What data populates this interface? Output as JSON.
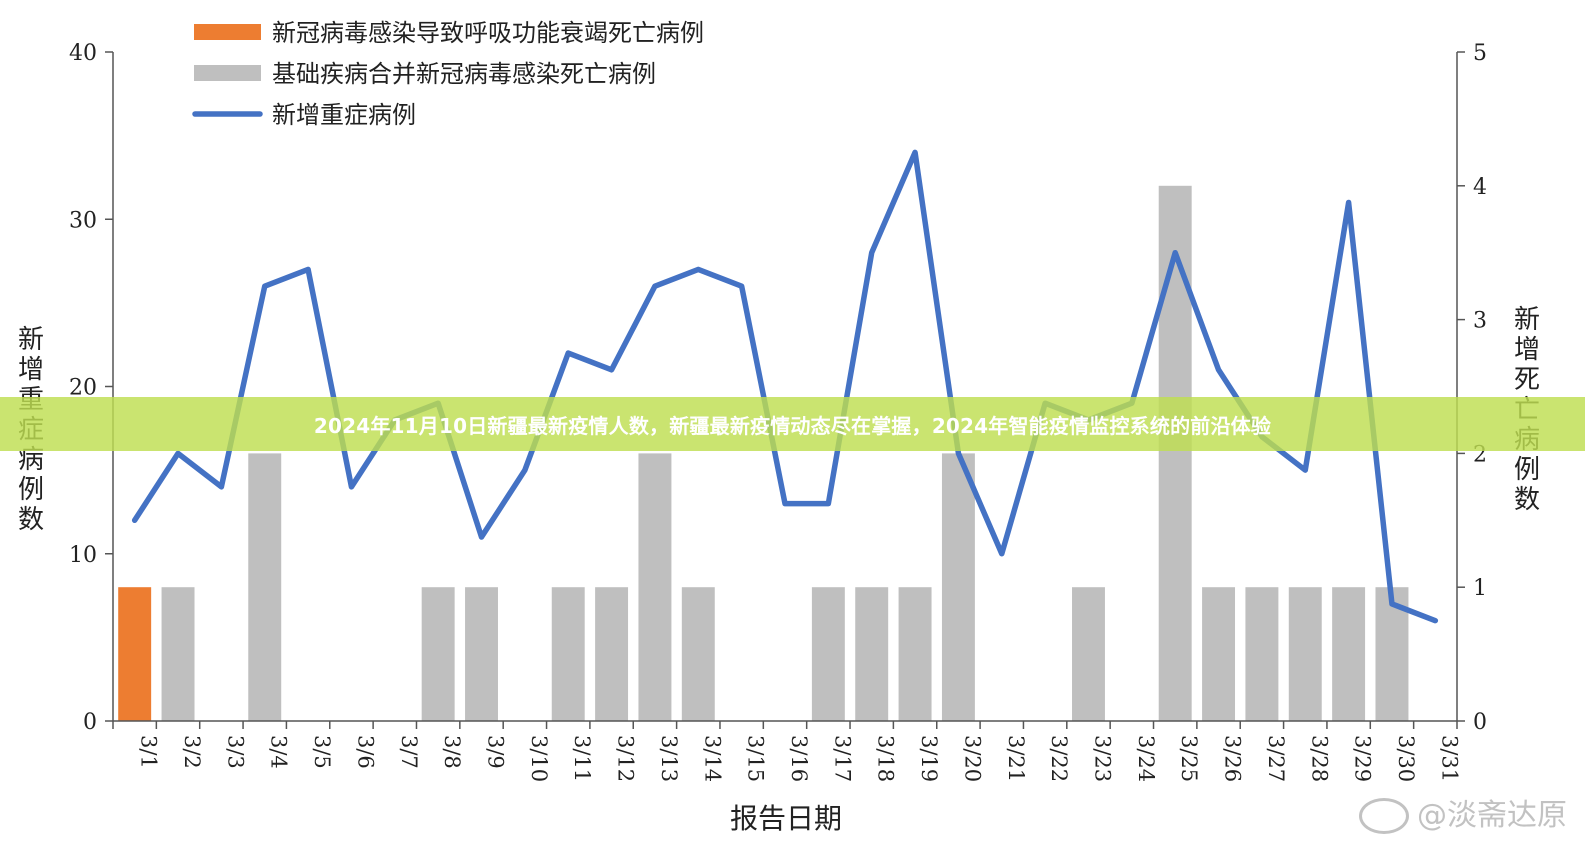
{
  "banner": {
    "text": "2024年11月10日新疆最新疫情人数，新疆最新疫情动态尽在掌握，2024年智能疫情监控系统的前沿体验"
  },
  "watermark": {
    "text": "@淡斋达原",
    "icon": "weibo-icon"
  },
  "chart_data": {
    "type": "bar+line",
    "xlabel": "报告日期",
    "ylabel_left": "新增重症病例数",
    "ylabel_right": "新增死亡病例数",
    "ylim_left": [
      0,
      40
    ],
    "ylim_right": [
      0,
      5
    ],
    "yticks_left": [
      "0",
      "10",
      "20",
      "30",
      "40"
    ],
    "yticks_right": [
      "0",
      "1",
      "2",
      "3",
      "4",
      "5"
    ],
    "categories": [
      "3/1",
      "3/2",
      "3/3",
      "3/4",
      "3/5",
      "3/6",
      "3/7",
      "3/8",
      "3/9",
      "3/10",
      "3/11",
      "3/12",
      "3/13",
      "3/14",
      "3/15",
      "3/16",
      "3/17",
      "3/18",
      "3/19",
      "3/20",
      "3/21",
      "3/22",
      "3/23",
      "3/24",
      "3/25",
      "3/26",
      "3/27",
      "3/28",
      "3/29",
      "3/30",
      "3/31"
    ],
    "legend_position": "top-left",
    "series": [
      {
        "name": "新冠病毒感染导致呼吸功能衰竭死亡病例",
        "type": "bar",
        "axis": "right",
        "color": "#ED7D31",
        "values": [
          1,
          0,
          0,
          0,
          0,
          0,
          0,
          0,
          0,
          0,
          0,
          0,
          0,
          0,
          0,
          0,
          0,
          0,
          0,
          0,
          0,
          0,
          0,
          0,
          0,
          0,
          0,
          0,
          0,
          0,
          0
        ]
      },
      {
        "name": "基础疾病合并新冠病毒感染死亡病例",
        "type": "bar",
        "axis": "right",
        "color": "#BFBFBF",
        "values": [
          0,
          1,
          0,
          2,
          0,
          0,
          0,
          1,
          1,
          0,
          1,
          1,
          2,
          1,
          0,
          0,
          1,
          1,
          1,
          2,
          0,
          0,
          1,
          0,
          4,
          1,
          1,
          1,
          1,
          1,
          0
        ]
      },
      {
        "name": "新增重症病例",
        "type": "line",
        "axis": "left",
        "color": "#4472C4",
        "values": [
          12,
          16,
          14,
          26,
          27,
          14,
          18,
          19,
          11,
          15,
          22,
          21,
          26,
          27,
          26,
          13,
          13,
          28,
          34,
          16,
          10,
          19,
          18,
          19,
          28,
          21,
          17,
          15,
          31,
          7,
          6
        ]
      }
    ]
  }
}
